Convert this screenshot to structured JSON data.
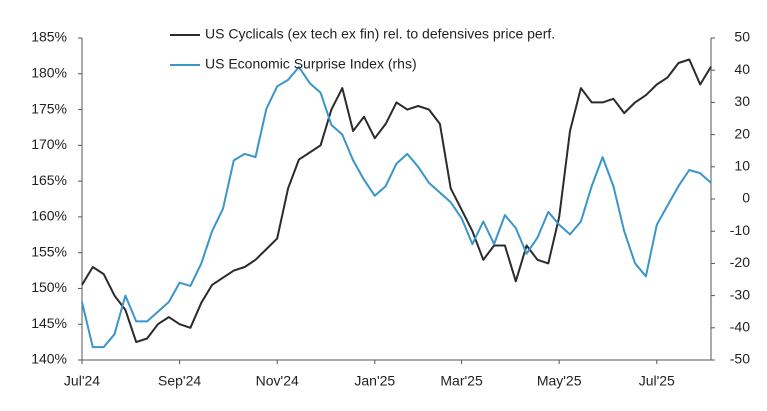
{
  "chart_data": {
    "type": "line",
    "categories": [
      "Jul'24",
      null,
      null,
      null,
      null,
      null,
      null,
      null,
      null,
      "Sep'24",
      null,
      null,
      null,
      null,
      null,
      null,
      null,
      null,
      "Nov'24",
      null,
      null,
      null,
      null,
      null,
      null,
      null,
      null,
      "Jan'25",
      null,
      null,
      null,
      null,
      null,
      null,
      null,
      "Mar'25",
      null,
      null,
      null,
      null,
      null,
      null,
      null,
      null,
      "May'25",
      null,
      null,
      null,
      null,
      null,
      null,
      null,
      null,
      "Jul'25",
      null,
      null,
      null,
      null,
      null
    ],
    "series": [
      {
        "name": "US Cyclicals (ex tech ex fin) rel. to defensives price perf.",
        "color": "#2b2b2b",
        "values": [
          150.5,
          153,
          152,
          149,
          147,
          142.5,
          143,
          145,
          146,
          145,
          144.5,
          148,
          150.5,
          151.5,
          152.5,
          153,
          154,
          155.5,
          157,
          164,
          168,
          169,
          170,
          175,
          178,
          172,
          174,
          171,
          173,
          176,
          175,
          175.5,
          175,
          173,
          164,
          161,
          158,
          154,
          156,
          156,
          151,
          156,
          154,
          153.5,
          160,
          172,
          178,
          176,
          176,
          176.5,
          174.5,
          176,
          177,
          178.5,
          179.5,
          181.5,
          182,
          178.5,
          181
        ]
      },
      {
        "name": "US Economic Surprise Index (rhs)",
        "color": "#3a95c9",
        "axis": "y2",
        "values": [
          -32,
          -46,
          -46,
          -42,
          -30,
          -38,
          -38,
          -35,
          -32,
          -26,
          -27,
          -20,
          -10,
          -3,
          12,
          14,
          13,
          28,
          35,
          37,
          41,
          36,
          33,
          23,
          20,
          12,
          6,
          1,
          4,
          11,
          14,
          10,
          5,
          2,
          -1,
          -6,
          -14,
          -7,
          -14,
          -5,
          -9,
          -17,
          -12,
          -4,
          -8,
          -11,
          -7,
          4,
          13,
          4,
          -10,
          -20,
          -24,
          -8,
          -2,
          4,
          9,
          8,
          5
        ]
      }
    ],
    "ylim": [
      140,
      185
    ],
    "yticks": [
      {
        "value": 140,
        "label": "140%"
      },
      {
        "value": 145,
        "label": "145%"
      },
      {
        "value": 150,
        "label": "150%"
      },
      {
        "value": 155,
        "label": "155%"
      },
      {
        "value": 160,
        "label": "160%"
      },
      {
        "value": 165,
        "label": "165%"
      },
      {
        "value": 170,
        "label": "170%"
      },
      {
        "value": 175,
        "label": "175%"
      },
      {
        "value": 180,
        "label": "180%"
      },
      {
        "value": 185,
        "label": "185%"
      }
    ],
    "y2lim": [
      -50,
      50
    ],
    "y2ticks": [
      -50,
      -40,
      -30,
      -20,
      -10,
      0,
      10,
      20,
      30,
      40,
      50
    ],
    "legend": "top-left"
  }
}
